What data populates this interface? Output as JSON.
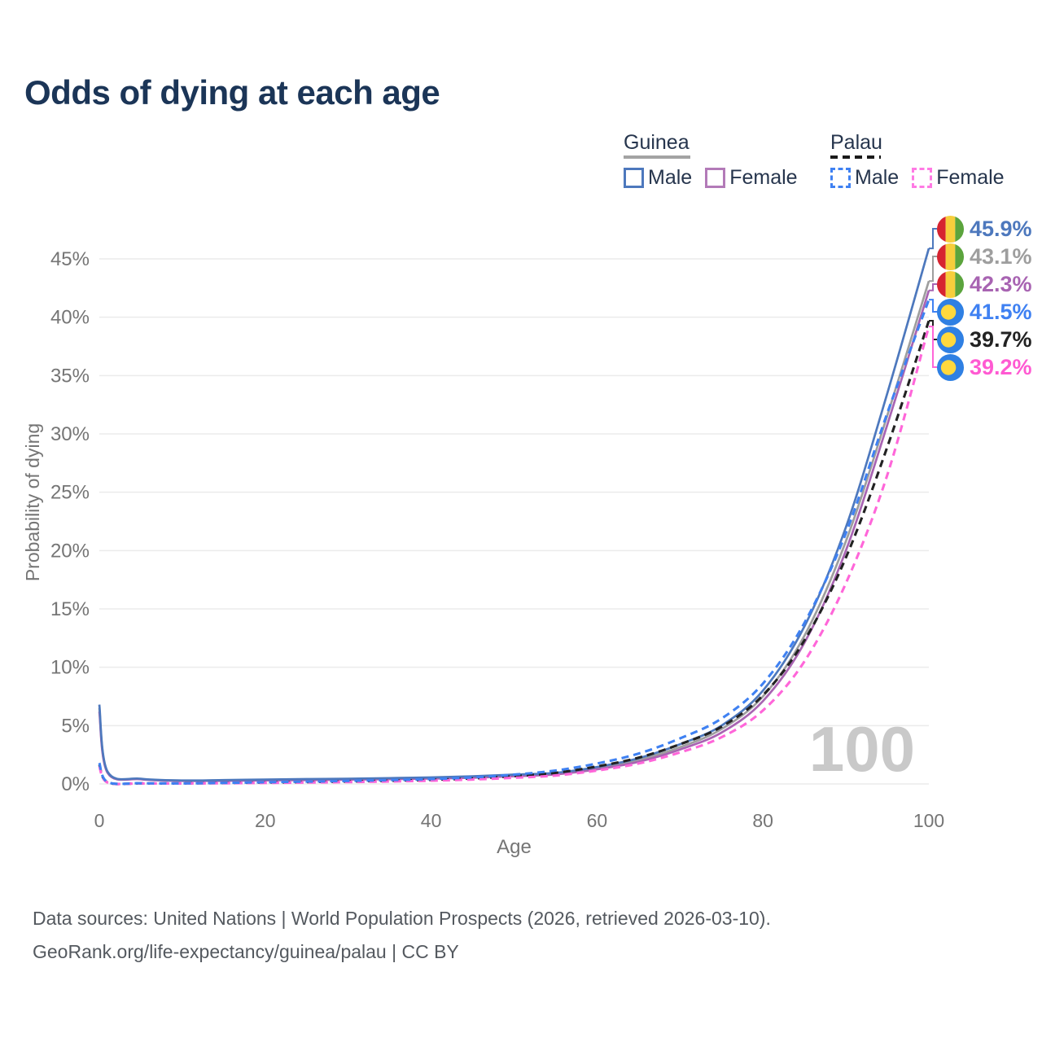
{
  "title": "Odds of dying at each age",
  "legend": {
    "groups": [
      {
        "name": "Guinea",
        "style": "solid",
        "underline_color": "#a3a3a3",
        "items": [
          {
            "label": "Male",
            "color": "#4d78bd"
          },
          {
            "label": "Female",
            "color": "#b37ab8"
          }
        ]
      },
      {
        "name": "Palau",
        "style": "dashed",
        "underline_color": "#1a1a1a",
        "items": [
          {
            "label": "Male",
            "color": "#3f81f2"
          },
          {
            "label": "Female",
            "color": "#ff7ae4"
          }
        ]
      }
    ]
  },
  "annotations": [
    {
      "value": "45.9%",
      "flag": "guinea",
      "color": "#4d78bd"
    },
    {
      "value": "43.1%",
      "flag": "guinea",
      "color": "#9e9e9e"
    },
    {
      "value": "42.3%",
      "flag": "guinea",
      "color": "#a864b2"
    },
    {
      "value": "41.5%",
      "flag": "palau",
      "color": "#3f81f2"
    },
    {
      "value": "39.7%",
      "flag": "palau",
      "color": "#222222"
    },
    {
      "value": "39.2%",
      "flag": "palau",
      "color": "#ff5ad2"
    }
  ],
  "watermark": "100",
  "chart_data": {
    "type": "line",
    "title": "Odds of dying at each age",
    "xlabel": "Age",
    "ylabel": "Probability of dying",
    "xlim": [
      0,
      100
    ],
    "ylim": [
      0,
      48
    ],
    "grid": "horizontal",
    "legend_position": "top-right",
    "xticks": [
      0,
      20,
      40,
      60,
      80,
      100
    ],
    "yticks": [
      0,
      5,
      10,
      15,
      20,
      25,
      30,
      35,
      40,
      45
    ],
    "x": [
      0,
      1,
      5,
      10,
      15,
      20,
      25,
      30,
      35,
      40,
      45,
      50,
      55,
      60,
      65,
      70,
      75,
      80,
      85,
      90,
      95,
      100
    ],
    "series": [
      {
        "id": "guinea-male",
        "name": "Guinea male",
        "color": "#4d78bd",
        "dash": false,
        "values": [
          6.8,
          1.05,
          0.45,
          0.3,
          0.33,
          0.38,
          0.42,
          0.45,
          0.5,
          0.56,
          0.66,
          0.8,
          0.95,
          1.45,
          2.2,
          3.4,
          5.0,
          8.0,
          13.5,
          22.0,
          33.5,
          45.9
        ],
        "end_label": "45.9%"
      },
      {
        "id": "guinea-both-sexes",
        "name": "Guinea (both sexes)",
        "color": "#9e9e9e",
        "dash": false,
        "values": [
          6.5,
          1.0,
          0.42,
          0.28,
          0.3,
          0.34,
          0.38,
          0.41,
          0.45,
          0.5,
          0.59,
          0.72,
          0.88,
          1.35,
          2.05,
          3.15,
          4.7,
          7.5,
          12.7,
          20.8,
          31.6,
          43.1
        ],
        "end_label": "43.1%"
      },
      {
        "id": "guinea-female",
        "name": "Guinea female",
        "color": "#a864b2",
        "dash": false,
        "values": [
          6.2,
          0.95,
          0.4,
          0.26,
          0.27,
          0.3,
          0.33,
          0.37,
          0.41,
          0.46,
          0.53,
          0.66,
          0.82,
          1.25,
          1.9,
          2.95,
          4.4,
          7.1,
          12.1,
          20.0,
          30.8,
          42.3
        ],
        "end_label": "42.3%"
      },
      {
        "id": "palau-male",
        "name": "Palau male",
        "color": "#3f81f2",
        "dash": true,
        "values": [
          1.8,
          0.16,
          0.06,
          0.05,
          0.09,
          0.15,
          0.2,
          0.26,
          0.33,
          0.42,
          0.56,
          0.8,
          1.15,
          1.75,
          2.6,
          3.9,
          5.6,
          8.6,
          13.8,
          21.5,
          31.8,
          41.5
        ],
        "end_label": "41.5%"
      },
      {
        "id": "palau-both-sexes",
        "name": "Palau (both sexes)",
        "color": "#222222",
        "dash": true,
        "values": [
          1.65,
          0.14,
          0.05,
          0.045,
          0.08,
          0.12,
          0.16,
          0.21,
          0.27,
          0.35,
          0.47,
          0.67,
          0.95,
          1.5,
          2.25,
          3.4,
          4.9,
          7.6,
          12.3,
          19.4,
          28.9,
          39.7
        ],
        "end_label": "39.7%"
      },
      {
        "id": "palau-female",
        "name": "Palau female",
        "color": "#ff66d9",
        "dash": true,
        "values": [
          1.5,
          0.12,
          0.045,
          0.04,
          0.06,
          0.09,
          0.12,
          0.16,
          0.21,
          0.28,
          0.38,
          0.53,
          0.72,
          1.15,
          1.75,
          2.7,
          4.0,
          6.3,
          10.5,
          17.2,
          26.5,
          39.2
        ],
        "end_label": "39.2%"
      }
    ]
  },
  "footer": {
    "line1": "Data sources: United Nations | World Population Prospects (2026, retrieved 2026-03-10).",
    "line2": "GeoRank.org/life-expectancy/guinea/palau | CC BY"
  }
}
